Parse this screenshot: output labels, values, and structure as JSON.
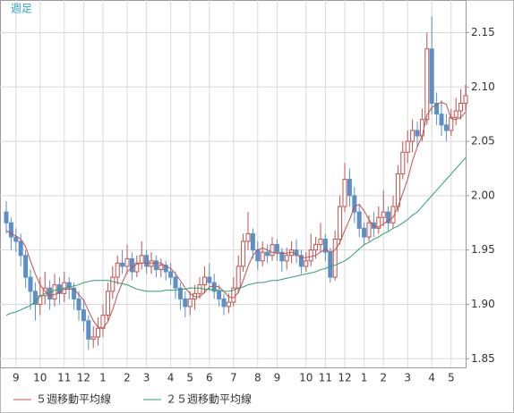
{
  "chart_data": {
    "type": "candlestick",
    "title": "週足",
    "categories": [
      null,
      null,
      "9",
      null,
      null,
      null,
      null,
      "10",
      null,
      null,
      null,
      null,
      "11",
      null,
      null,
      null,
      "12",
      null,
      null,
      null,
      "1",
      null,
      null,
      null,
      null,
      "2",
      null,
      null,
      null,
      "3",
      null,
      null,
      null,
      null,
      "4",
      null,
      null,
      null,
      "5",
      null,
      null,
      null,
      "6",
      null,
      null,
      null,
      null,
      "7",
      null,
      null,
      null,
      null,
      "8",
      null,
      null,
      null,
      "9",
      null,
      null,
      null,
      null,
      null,
      "10",
      null,
      null,
      null,
      "11",
      null,
      null,
      null,
      "12",
      null,
      null,
      null,
      "1",
      null,
      null,
      null,
      "2",
      null,
      null,
      null,
      null,
      "3",
      null,
      null,
      null,
      null,
      "4",
      null,
      null,
      null,
      "5",
      null,
      null,
      null
    ],
    "open": [
      1.985,
      1.975,
      1.962,
      1.958,
      1.945,
      1.925,
      1.912,
      1.9,
      1.908,
      1.915,
      1.905,
      1.918,
      1.91,
      1.92,
      1.915,
      1.905,
      1.895,
      1.885,
      1.868,
      1.87,
      1.878,
      1.89,
      1.912,
      1.925,
      1.938,
      1.935,
      1.942,
      1.93,
      1.938,
      1.945,
      1.935,
      1.94,
      1.932,
      1.936,
      1.93,
      1.925,
      1.915,
      1.905,
      1.898,
      1.905,
      1.91,
      1.918,
      1.925,
      1.92,
      1.912,
      1.905,
      1.898,
      1.902,
      1.915,
      1.935,
      1.958,
      1.965,
      1.95,
      1.94,
      1.948,
      1.945,
      1.955,
      1.948,
      1.94,
      1.945,
      1.95,
      1.945,
      1.935,
      1.94,
      1.95,
      1.955,
      1.96,
      1.948,
      1.925,
      1.96,
      1.99,
      2.015,
      2.0,
      1.985,
      1.97,
      1.962,
      1.975,
      1.97,
      1.98,
      1.985,
      1.975,
      1.99,
      2.02,
      2.04,
      2.05,
      2.06,
      2.055,
      2.07,
      2.135,
      2.085,
      2.075,
      2.065,
      2.06,
      2.072,
      2.078,
      2.085
    ],
    "high": [
      1.995,
      1.98,
      1.97,
      1.965,
      1.95,
      1.932,
      1.92,
      1.925,
      1.93,
      1.922,
      1.928,
      1.925,
      1.93,
      1.925,
      1.92,
      1.912,
      1.905,
      1.89,
      1.88,
      1.888,
      1.9,
      1.92,
      1.935,
      1.945,
      1.95,
      1.955,
      1.948,
      1.945,
      1.958,
      1.95,
      1.948,
      1.945,
      1.942,
      1.94,
      1.938,
      1.93,
      1.92,
      1.912,
      1.912,
      1.918,
      1.925,
      1.935,
      1.938,
      1.928,
      1.918,
      1.91,
      1.91,
      1.925,
      1.945,
      1.965,
      1.985,
      1.97,
      1.958,
      1.958,
      1.955,
      1.962,
      1.96,
      1.952,
      1.952,
      1.958,
      1.96,
      1.95,
      1.948,
      1.965,
      1.962,
      1.975,
      1.965,
      1.952,
      1.968,
      2.0,
      2.03,
      2.025,
      2.008,
      1.992,
      1.975,
      1.982,
      1.985,
      1.99,
      2.005,
      1.99,
      2.0,
      2.028,
      2.05,
      2.06,
      2.07,
      2.068,
      2.08,
      2.15,
      2.165,
      2.095,
      2.088,
      2.075,
      2.08,
      2.09,
      2.098,
      2.102
    ],
    "low": [
      1.965,
      1.95,
      1.948,
      1.935,
      1.915,
      1.895,
      1.885,
      1.89,
      1.9,
      1.895,
      1.898,
      1.9,
      1.902,
      1.905,
      1.895,
      1.885,
      1.875,
      1.858,
      1.86,
      1.862,
      1.87,
      1.885,
      1.905,
      1.918,
      1.928,
      1.928,
      1.922,
      1.925,
      1.932,
      1.928,
      1.928,
      1.925,
      1.925,
      1.922,
      1.918,
      1.905,
      1.895,
      1.888,
      1.89,
      1.895,
      1.905,
      1.91,
      1.912,
      1.905,
      1.898,
      1.89,
      1.892,
      1.898,
      1.91,
      1.93,
      1.95,
      1.942,
      1.932,
      1.935,
      1.938,
      1.94,
      1.94,
      1.93,
      1.932,
      1.938,
      1.938,
      1.928,
      1.93,
      1.935,
      1.942,
      1.948,
      1.94,
      1.92,
      1.922,
      1.955,
      1.985,
      1.99,
      1.975,
      1.962,
      1.955,
      1.958,
      1.962,
      1.965,
      1.972,
      1.968,
      1.97,
      1.985,
      2.015,
      2.03,
      2.04,
      2.045,
      2.05,
      2.065,
      2.075,
      2.065,
      2.055,
      2.05,
      2.055,
      2.065,
      2.07,
      2.078
    ],
    "close": [
      1.975,
      1.962,
      1.958,
      1.945,
      1.925,
      1.912,
      1.9,
      1.908,
      1.915,
      1.905,
      1.918,
      1.91,
      1.92,
      1.915,
      1.905,
      1.895,
      1.885,
      1.868,
      1.87,
      1.878,
      1.89,
      1.912,
      1.925,
      1.938,
      1.935,
      1.942,
      1.93,
      1.938,
      1.945,
      1.935,
      1.94,
      1.932,
      1.936,
      1.93,
      1.925,
      1.915,
      1.905,
      1.898,
      1.905,
      1.91,
      1.918,
      1.925,
      1.92,
      1.912,
      1.905,
      1.898,
      1.902,
      1.915,
      1.935,
      1.958,
      1.965,
      1.95,
      1.94,
      1.948,
      1.945,
      1.955,
      1.948,
      1.94,
      1.945,
      1.95,
      1.945,
      1.935,
      1.94,
      1.95,
      1.955,
      1.96,
      1.948,
      1.925,
      1.96,
      1.99,
      2.015,
      2.0,
      1.985,
      1.97,
      1.962,
      1.975,
      1.97,
      1.98,
      1.985,
      1.975,
      1.99,
      2.02,
      2.04,
      2.05,
      2.06,
      2.055,
      2.07,
      2.135,
      2.085,
      2.075,
      2.065,
      2.06,
      2.072,
      2.078,
      2.085,
      2.092
    ],
    "up_color": "#c0504d",
    "down_color": "#5b8fc7",
    "series": [
      {
        "name": "５週移動平均線",
        "color": "#c0504d",
        "values": [
          1.968,
          1.965,
          1.963,
          1.96,
          1.953,
          1.94,
          1.928,
          1.918,
          1.912,
          1.908,
          1.909,
          1.911,
          1.914,
          1.914,
          1.914,
          1.909,
          1.904,
          1.894,
          1.885,
          1.879,
          1.878,
          1.884,
          1.895,
          1.909,
          1.92,
          1.93,
          1.934,
          1.937,
          1.938,
          1.938,
          1.938,
          1.938,
          1.938,
          1.935,
          1.933,
          1.928,
          1.922,
          1.915,
          1.91,
          1.907,
          1.907,
          1.911,
          1.916,
          1.917,
          1.916,
          1.912,
          1.907,
          1.906,
          1.911,
          1.922,
          1.935,
          1.945,
          1.95,
          1.952,
          1.95,
          1.948,
          1.947,
          1.947,
          1.947,
          1.948,
          1.946,
          1.943,
          1.943,
          1.944,
          1.945,
          1.948,
          1.951,
          1.948,
          1.95,
          1.957,
          1.968,
          1.978,
          1.99,
          1.992,
          1.986,
          1.978,
          1.972,
          1.971,
          1.974,
          1.977,
          1.98,
          1.99,
          2.002,
          2.015,
          2.032,
          2.045,
          2.055,
          2.074,
          2.081,
          2.084,
          2.086,
          2.084,
          2.071,
          2.07,
          2.072,
          2.077
        ]
      },
      {
        "name": "２５週移動平均線",
        "color": "#2e9e6e",
        "values": [
          1.89,
          1.892,
          1.893,
          1.895,
          1.897,
          1.899,
          1.903,
          1.907,
          1.91,
          1.911,
          1.913,
          1.914,
          1.915,
          1.916,
          1.917,
          1.918,
          1.92,
          1.921,
          1.922,
          1.922,
          1.922,
          1.922,
          1.921,
          1.92,
          1.919,
          1.918,
          1.916,
          1.914,
          1.913,
          1.912,
          1.912,
          1.912,
          1.912,
          1.913,
          1.913,
          1.913,
          1.914,
          1.914,
          1.915,
          1.915,
          1.915,
          1.914,
          1.914,
          1.913,
          1.913,
          1.912,
          1.912,
          1.913,
          1.915,
          1.916,
          1.918,
          1.919,
          1.92,
          1.92,
          1.921,
          1.922,
          1.922,
          1.923,
          1.924,
          1.925,
          1.926,
          1.927,
          1.928,
          1.929,
          1.93,
          1.932,
          1.933,
          1.935,
          1.936,
          1.938,
          1.94,
          1.943,
          1.947,
          1.951,
          1.955,
          1.957,
          1.96,
          1.962,
          1.965,
          1.967,
          1.97,
          1.972,
          1.975,
          1.978,
          1.982,
          1.985,
          1.99,
          1.995,
          2.0,
          2.005,
          2.01,
          2.015,
          2.02,
          2.025,
          2.03,
          2.035
        ]
      }
    ],
    "ylim": [
      1.842,
      2.18
    ],
    "yticks": [
      1.85,
      {
        "value": 1.9,
        "label": "1.90"
      },
      1.95,
      {
        "value": 2.0,
        "label": "2.00"
      },
      2.05,
      {
        "value": 2.1,
        "label": "2.10"
      },
      2.15
    ],
    "grid": true
  }
}
